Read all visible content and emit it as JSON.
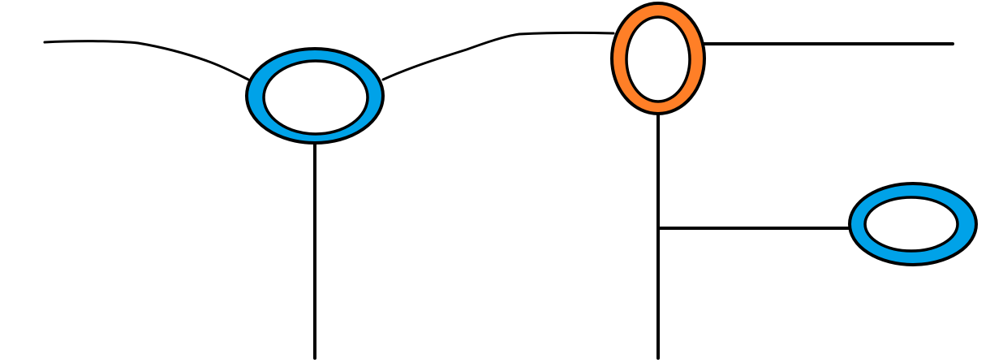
{
  "diagram": {
    "background_color": "#ffffff",
    "line_color": "#000000",
    "rings": [
      {
        "id": "ring-left-blue",
        "fill": "#00a2e8",
        "outline": "#000000"
      },
      {
        "id": "ring-top-orange",
        "fill": "#ff7f27",
        "outline": "#000000"
      },
      {
        "id": "ring-right-blue",
        "fill": "#00a2e8",
        "outline": "#000000"
      }
    ]
  }
}
